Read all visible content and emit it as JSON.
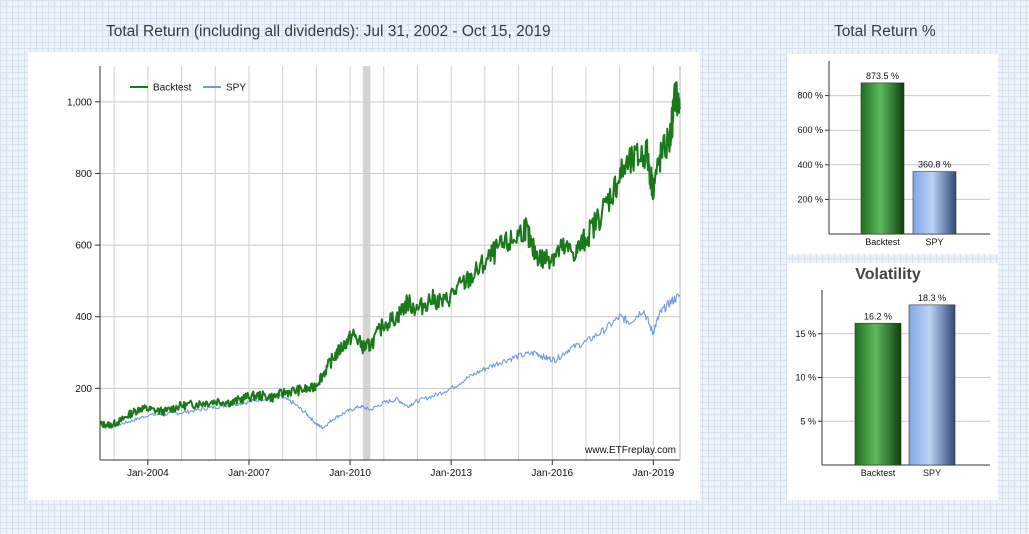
{
  "main_title": "Total Return (including all dividends): Jul 31, 2002 - Oct 15, 2019",
  "return_title": "Total Return %",
  "volatility_title": "Volatility",
  "watermark": "www.ETFreplay.com",
  "colors": {
    "backtest": "#1a7a1a",
    "spy": "#6f9be0",
    "recession": "#d4d4d4"
  },
  "chart_data": [
    {
      "type": "line",
      "title": "Total Return (including all dividends): Jul 31, 2002 - Oct 15, 2019",
      "x_range": [
        2002.58,
        2019.79
      ],
      "ylim": [
        0,
        1100
      ],
      "y_ticks": [
        200,
        400,
        600,
        800,
        1000
      ],
      "y_tick_labels": [
        "200",
        "400",
        "600",
        "800",
        "1,000"
      ],
      "x_ticks": [
        2004,
        2007,
        2010,
        2013,
        2016,
        2019
      ],
      "x_tick_labels": [
        "Jan-2004",
        "Jan-2007",
        "Jan-2010",
        "Jan-2013",
        "Jan-2016",
        "Jan-2019"
      ],
      "shaded_period": [
        2010.38,
        2010.6
      ],
      "legend": [
        "Backtest",
        "SPY"
      ],
      "legend_position": "top-left",
      "series": [
        {
          "name": "Backtest",
          "x": [
            2002.58,
            2002.9,
            2003.2,
            2003.5,
            2003.8,
            2004.1,
            2004.5,
            2004.9,
            2005.3,
            2005.7,
            2006.1,
            2006.5,
            2006.9,
            2007.3,
            2007.7,
            2008.1,
            2008.5,
            2008.9,
            2009.2,
            2009.5,
            2009.8,
            2010.1,
            2010.4,
            2010.6,
            2011.0,
            2011.4,
            2011.7,
            2012.0,
            2012.4,
            2012.8,
            2013.2,
            2013.6,
            2014.0,
            2014.4,
            2014.8,
            2015.2,
            2015.4,
            2015.7,
            2016.0,
            2016.3,
            2016.7,
            2017.0,
            2017.4,
            2017.8,
            2018.1,
            2018.5,
            2018.8,
            2018.98,
            2019.2,
            2019.5,
            2019.65,
            2019.79
          ],
          "values": [
            100,
            98,
            110,
            130,
            145,
            140,
            135,
            150,
            155,
            160,
            165,
            160,
            175,
            180,
            175,
            190,
            195,
            200,
            240,
            285,
            320,
            350,
            315,
            320,
            380,
            400,
            440,
            420,
            450,
            440,
            480,
            510,
            550,
            590,
            610,
            650,
            590,
            560,
            570,
            590,
            580,
            620,
            680,
            750,
            810,
            840,
            860,
            760,
            840,
            900,
            1020,
            980
          ]
        },
        {
          "name": "SPY",
          "x": [
            2002.58,
            2002.9,
            2003.2,
            2003.6,
            2004.0,
            2004.5,
            2005.0,
            2005.5,
            2006.0,
            2006.5,
            2007.0,
            2007.5,
            2007.9,
            2008.3,
            2008.7,
            2009.0,
            2009.2,
            2009.5,
            2009.9,
            2010.3,
            2010.6,
            2011.0,
            2011.4,
            2011.7,
            2012.0,
            2012.5,
            2013.0,
            2013.5,
            2014.0,
            2014.5,
            2015.0,
            2015.5,
            2015.8,
            2016.1,
            2016.5,
            2017.0,
            2017.5,
            2018.0,
            2018.3,
            2018.7,
            2018.98,
            2019.2,
            2019.5,
            2019.79
          ],
          "values": [
            100,
            92,
            100,
            112,
            125,
            128,
            132,
            140,
            148,
            155,
            162,
            172,
            178,
            160,
            130,
            100,
            90,
            115,
            135,
            150,
            140,
            160,
            170,
            150,
            165,
            180,
            200,
            230,
            255,
            275,
            290,
            300,
            285,
            280,
            310,
            330,
            360,
            400,
            385,
            420,
            355,
            410,
            440,
            460
          ]
        }
      ]
    },
    {
      "type": "bar",
      "title": "Total Return %",
      "categories": [
        "Backtest",
        "SPY"
      ],
      "values": [
        873.5,
        360.8
      ],
      "value_labels": [
        "873.5 %",
        "360.8 %"
      ],
      "ylim": [
        0,
        1000
      ],
      "y_ticks": [
        200,
        400,
        600,
        800
      ],
      "y_tick_labels": [
        "200 %",
        "400 %",
        "600 %",
        "800 %"
      ]
    },
    {
      "type": "bar",
      "title": "Volatility",
      "categories": [
        "Backtest",
        "SPY"
      ],
      "values": [
        16.2,
        18.3
      ],
      "value_labels": [
        "16.2 %",
        "18.3 %"
      ],
      "ylim": [
        0,
        20
      ],
      "y_ticks": [
        5,
        10,
        15
      ],
      "y_tick_labels": [
        "5 %",
        "10 %",
        "15 %"
      ]
    }
  ]
}
